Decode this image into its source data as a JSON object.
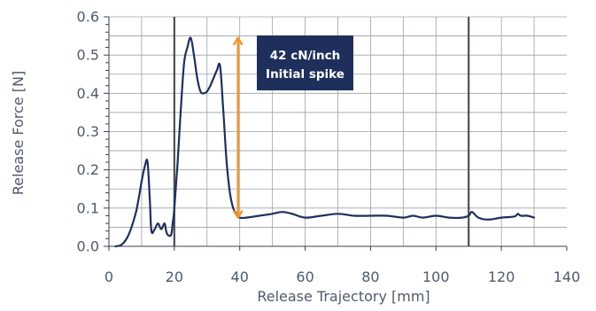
{
  "chart_data": {
    "type": "line",
    "title": "",
    "xlabel": "Release Trajectory [mm]",
    "ylabel": "Release Force [N]",
    "xlim": [
      0,
      140
    ],
    "ylim": [
      0,
      0.6
    ],
    "x_ticks": [
      "0",
      "20",
      "40",
      "60",
      "80",
      "100",
      "120",
      "140"
    ],
    "y_ticks": [
      "0.0",
      "0.1",
      "0.2",
      "0.3",
      "0.4",
      "0.5",
      "0.6"
    ],
    "grid": true,
    "legend": "none",
    "highlight_lines_x": [
      20,
      110
    ],
    "series": [
      {
        "color": "#1f2f5c",
        "x": [
          2,
          4,
          6,
          8,
          9,
          10,
          11,
          11.8,
          12.5,
          13,
          14,
          15,
          16,
          17,
          17.5,
          18,
          19,
          19.5,
          20,
          21,
          22,
          23,
          24,
          25,
          26,
          27,
          28,
          29,
          30,
          31,
          32,
          33,
          34,
          35,
          36,
          37,
          38,
          39,
          40,
          42,
          46,
          50,
          53,
          56,
          60,
          65,
          70,
          75,
          80,
          85,
          90,
          93,
          96,
          100,
          104,
          108,
          110,
          111,
          113,
          116,
          120,
          124,
          125,
          126,
          128,
          130
        ],
        "y": [
          0.0,
          0.005,
          0.03,
          0.08,
          0.12,
          0.17,
          0.21,
          0.22,
          0.12,
          0.04,
          0.045,
          0.06,
          0.045,
          0.06,
          0.04,
          0.03,
          0.03,
          0.06,
          0.1,
          0.22,
          0.36,
          0.48,
          0.52,
          0.545,
          0.5,
          0.44,
          0.405,
          0.4,
          0.405,
          0.42,
          0.44,
          0.46,
          0.47,
          0.35,
          0.22,
          0.14,
          0.1,
          0.085,
          0.075,
          0.075,
          0.08,
          0.085,
          0.09,
          0.085,
          0.075,
          0.08,
          0.085,
          0.08,
          0.08,
          0.08,
          0.075,
          0.08,
          0.075,
          0.08,
          0.075,
          0.075,
          0.08,
          0.09,
          0.075,
          0.07,
          0.075,
          0.078,
          0.085,
          0.08,
          0.08,
          0.075
        ]
      }
    ],
    "annotation": {
      "line1": "42 cN/inch",
      "line2": "Initial spike",
      "arrow_x": 40,
      "arrow_from_y": 0.075,
      "arrow_to_y": 0.545,
      "arrow_color": "#f0962e",
      "box_color": "#1f2f5c"
    }
  }
}
